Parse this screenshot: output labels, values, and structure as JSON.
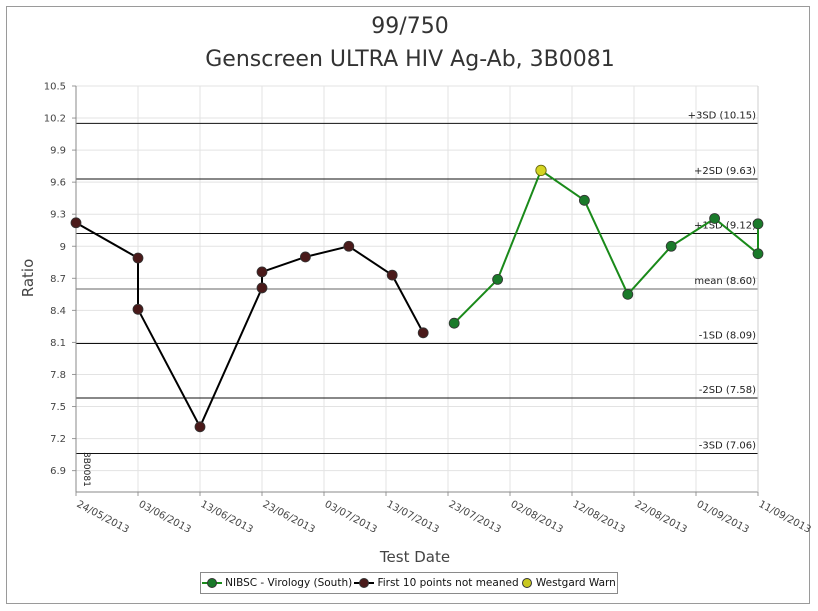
{
  "chart_data": {
    "type": "line",
    "title": "99/750",
    "subtitle": "Genscreen ULTRA HIV Ag-Ab, 3B0081",
    "xlabel": "Test Date",
    "ylabel": "Ratio",
    "ylim": [
      6.7,
      10.5
    ],
    "yticks": [
      "10.5",
      "10.2",
      "9.9",
      "9.6",
      "9.3",
      "9",
      "8.7",
      "8.4",
      "8.1",
      "7.8",
      "7.5",
      "7.2",
      "6.9"
    ],
    "xticks": [
      "24/05/2013",
      "03/06/2013",
      "13/06/2013",
      "23/06/2013",
      "03/07/2013",
      "13/07/2013",
      "23/07/2013",
      "02/08/2013",
      "12/08/2013",
      "22/08/2013",
      "01/09/2013",
      "11/09/2013"
    ],
    "control_lines": [
      {
        "label": "+3SD (10.15)",
        "value": 10.15
      },
      {
        "label": "+2SD (9.63)",
        "value": 9.63
      },
      {
        "label": "+1SD (9.12)",
        "value": 9.12
      },
      {
        "label": "mean (8.60)",
        "value": 8.6
      },
      {
        "label": "-1SD (8.09)",
        "value": 8.09
      },
      {
        "label": "-2SD (7.58)",
        "value": 7.58
      },
      {
        "label": "-3SD (7.06)",
        "value": 7.06
      }
    ],
    "lot_marker": "3B0081",
    "series": [
      {
        "name": "First 10 points not meaned",
        "color": "#4a1a1a",
        "line_color": "#000000",
        "points": [
          {
            "x": "24/05/2013",
            "y": 9.22
          },
          {
            "x": "03/06/2013",
            "y": 8.89
          },
          {
            "x": "03/06/2013",
            "y": 8.41
          },
          {
            "x": "13/06/2013",
            "y": 7.31
          },
          {
            "x": "23/06/2013",
            "y": 8.61
          },
          {
            "x": "23/06/2013",
            "y": 8.76
          },
          {
            "x": "30/06/2013",
            "y": 8.9
          },
          {
            "x": "07/07/2013",
            "y": 9.0
          },
          {
            "x": "14/07/2013",
            "y": 8.73
          },
          {
            "x": "19/07/2013",
            "y": 8.19
          }
        ]
      },
      {
        "name": "NIBSC - Virology (South)",
        "color": "#1a7a2a",
        "line_color": "#1a8a1a",
        "points": [
          {
            "x": "24/07/2013",
            "y": 8.28
          },
          {
            "x": "31/07/2013",
            "y": 8.69
          },
          {
            "x": "07/08/2013",
            "y": 9.71
          },
          {
            "x": "14/08/2013",
            "y": 9.43
          },
          {
            "x": "21/08/2013",
            "y": 8.55
          },
          {
            "x": "28/08/2013",
            "y": 9.0
          },
          {
            "x": "04/09/2013",
            "y": 9.26
          },
          {
            "x": "11/09/2013",
            "y": 8.93
          },
          {
            "x": "11/09/2013",
            "y": 9.21
          }
        ]
      }
    ],
    "westgard_warn": [
      {
        "x": "07/08/2013",
        "y": 9.71
      }
    ],
    "legend": {
      "placement": "bottom",
      "items": [
        {
          "label": "NIBSC - Virology (South)",
          "color": "#1a7a2a",
          "line_color": "#1a8a1a",
          "has_line": true
        },
        {
          "label": "First 10 points not meaned",
          "color": "#4a1a1a",
          "line_color": "#000000",
          "has_line": true
        },
        {
          "label": "Westgard Warn",
          "color": "#c8c820",
          "has_line": false
        }
      ]
    }
  }
}
